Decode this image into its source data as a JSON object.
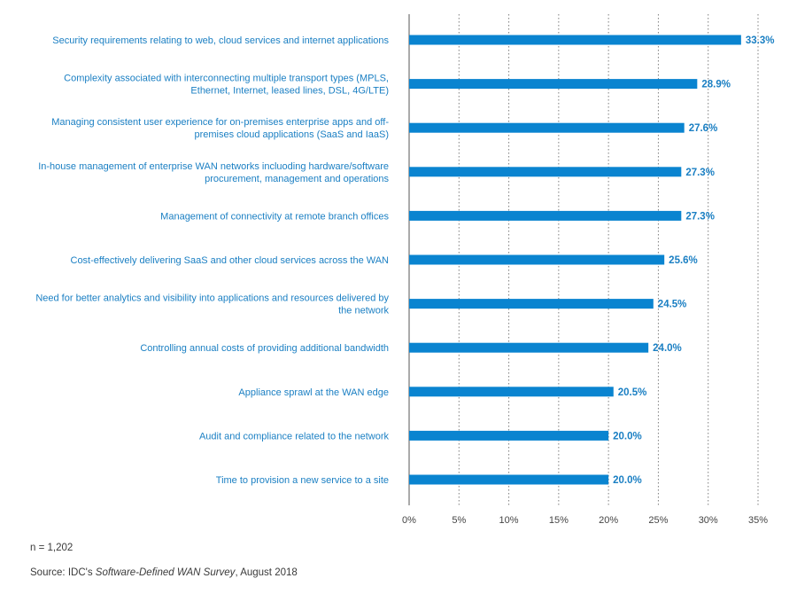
{
  "colors": {
    "bar": "#0a84d0",
    "category_text": "#1a7fc3",
    "value_text": "#1a7fc3",
    "grid": "#7f7f7f",
    "axis_text": "#444444",
    "note_text": "#3a3a3a"
  },
  "chart_data": {
    "type": "bar",
    "orientation": "horizontal",
    "categories": [
      [
        "Security requirements relating to web, cloud services and internet applications"
      ],
      [
        "Complexity associated with interconnecting multiple transport types (MPLS,",
        "Ethernet, Internet, leased lines, DSL, 4G/LTE)"
      ],
      [
        "Managing consistent user experience for on-premises enterprise apps and off-",
        "premises cloud applications (SaaS and IaaS)"
      ],
      [
        "In-house management of enterprise WAN networks incluoding hardware/software",
        "procurement, management and operations"
      ],
      [
        "Management of connectivity at remote branch offices"
      ],
      [
        "Cost-effectively delivering SaaS and other cloud services across the WAN"
      ],
      [
        "Need for better analytics and visibility into applications and resources delivered by",
        "the network"
      ],
      [
        "Controlling annual costs of providing additional bandwidth"
      ],
      [
        "Appliance sprawl at the WAN edge"
      ],
      [
        "Audit and compliance related to the network"
      ],
      [
        "Time to provision a new service to a site"
      ]
    ],
    "values": [
      33.3,
      28.9,
      27.6,
      27.3,
      27.3,
      25.6,
      24.5,
      24.0,
      20.5,
      20.0,
      20.0
    ],
    "value_labels": [
      "33.3%",
      "28.9%",
      "27.6%",
      "27.3%",
      "27.3%",
      "25.6%",
      "24.5%",
      "24.0%",
      "20.5%",
      "20.0%",
      "20.0%"
    ],
    "x_ticks": [
      0,
      5,
      10,
      15,
      20,
      25,
      30,
      35
    ],
    "x_tick_labels": [
      "0%",
      "5%",
      "10%",
      "15%",
      "20%",
      "25%",
      "30%",
      "35%"
    ],
    "xlim": [
      0,
      35
    ],
    "grid": "vertical dotted",
    "legend": "none"
  },
  "notes": {
    "sample_size": "n = 1,202",
    "source_prefix": "Source: IDC's ",
    "source_title": "Software-Defined WAN Survey",
    "source_suffix": ", August 2018"
  }
}
